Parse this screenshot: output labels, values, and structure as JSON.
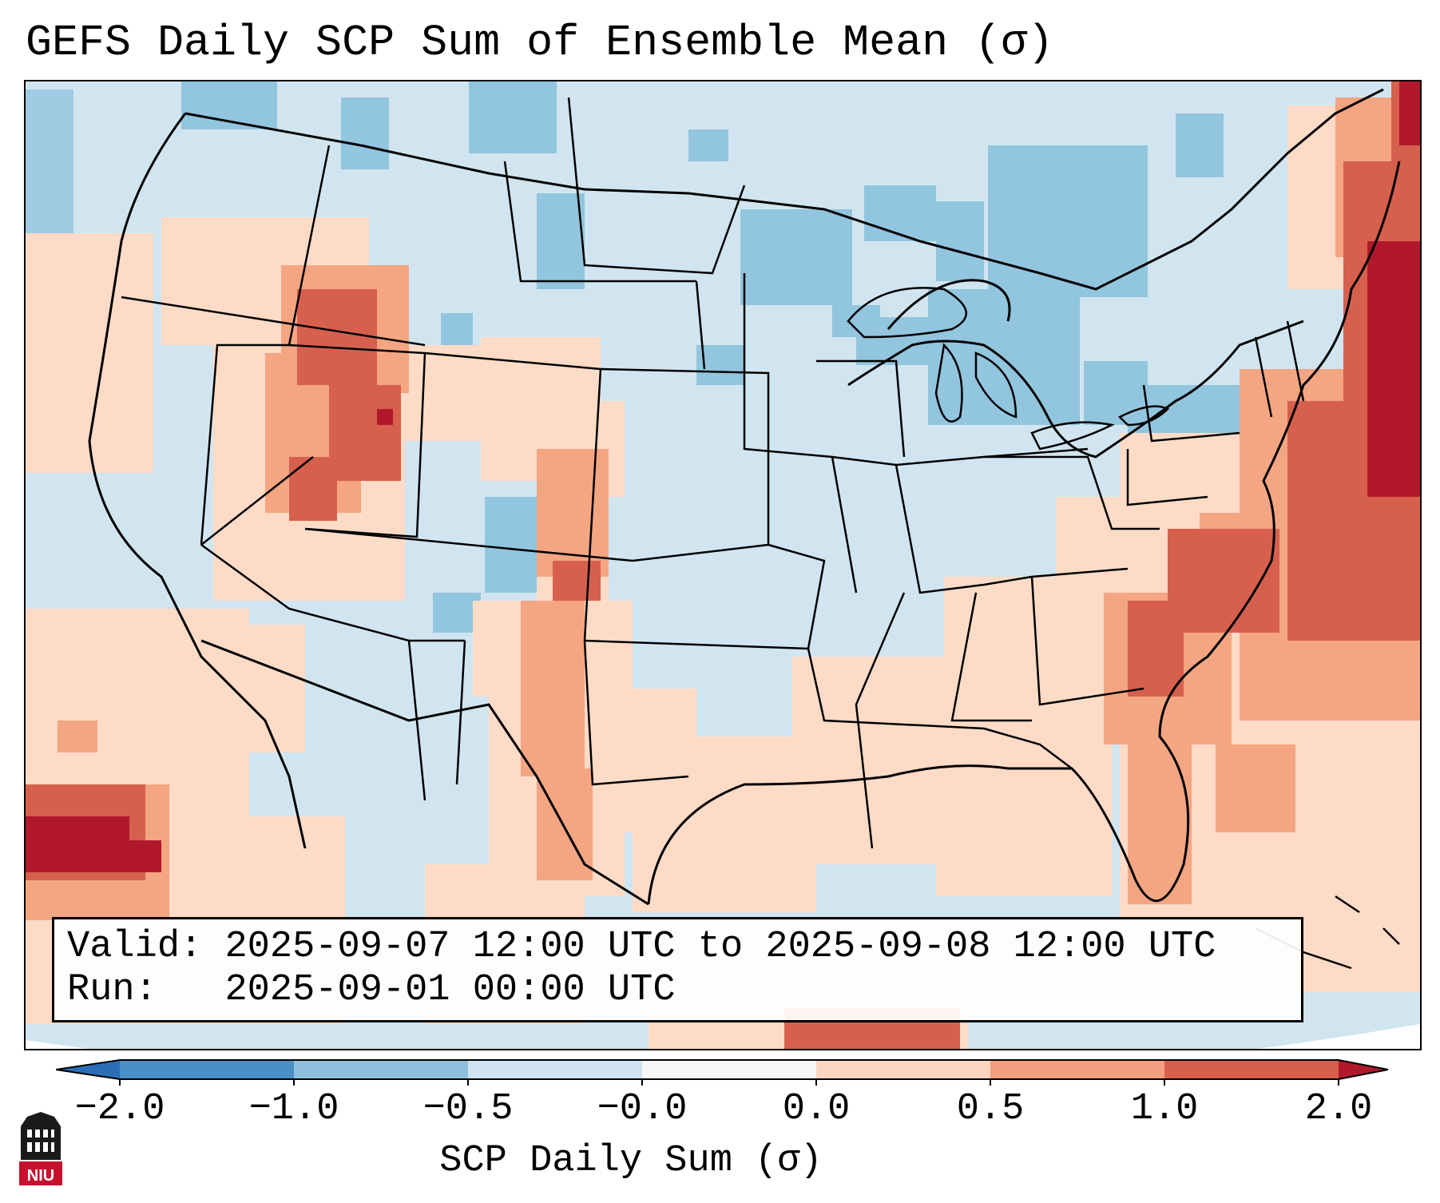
{
  "title": "GEFS Daily SCP Sum of Ensemble Mean (σ)",
  "info": {
    "valid_label": "Valid:",
    "valid_value": "2025-09-07 12:00 UTC to 2025-09-08 12:00 UTC",
    "run_label": "Run:",
    "run_value": "2025-09-01 00:00 UTC"
  },
  "colorbar": {
    "label": "SCP Daily Sum (σ)",
    "ticks": [
      "−2.0",
      "−1.0",
      "−0.5",
      "−0.0",
      "0.0",
      "0.5",
      "1.0",
      "2.0"
    ],
    "colors": {
      "below_min": "#2b6eb5",
      "neg_2_to_1": "#4a8fc6",
      "neg_1_to_05": "#8fc1de",
      "neg_05_to_0": "#cfe3f0",
      "zero": "#f7f7f7",
      "pos_0_to_05": "#fdd6c2",
      "pos_05_to_1": "#f2a07f",
      "pos_1_to_2": "#d6604d",
      "above_max": "#b2182b"
    }
  },
  "map": {
    "domain": "Continental United States",
    "background_color": "#d1e5f0",
    "boundary_color": "#000000"
  },
  "logo": {
    "text": "NIU",
    "color": "#c8102e"
  }
}
